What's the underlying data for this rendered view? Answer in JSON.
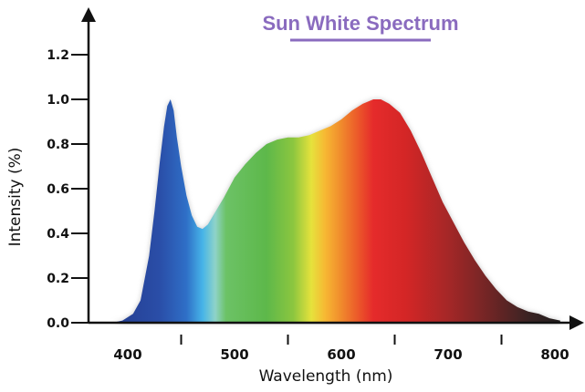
{
  "chart_data": {
    "type": "area",
    "title": "Sun White Spectrum",
    "xlabel": "Wavelength (nm)",
    "ylabel": "Intensity (%)",
    "xlim": [
      380,
      810
    ],
    "ylim": [
      0,
      1.3
    ],
    "x_ticks": [
      "400",
      "500",
      "600",
      "700",
      "800"
    ],
    "x_minor_ticks": [
      450,
      550,
      650,
      750
    ],
    "y_ticks": [
      "0.0",
      "0.2",
      "0.4",
      "0.6",
      "0.8",
      "1.0",
      "1.2"
    ],
    "grid": false,
    "fill": "spectral rainbow (wavelength-mapped colors)",
    "series": [
      {
        "x": [
          385,
          395,
          405,
          412,
          420,
          425,
          430,
          434,
          437,
          440,
          443,
          446,
          450,
          455,
          460,
          465,
          470,
          475,
          480,
          490,
          500,
          510,
          520,
          530,
          540,
          550,
          560,
          570,
          580,
          590,
          600,
          610,
          620,
          630,
          637,
          645,
          655,
          665,
          675,
          685,
          695,
          705,
          715,
          725,
          735,
          745,
          755,
          765,
          775,
          785,
          795,
          805
        ],
        "values": [
          0.0,
          0.01,
          0.04,
          0.1,
          0.3,
          0.5,
          0.72,
          0.88,
          0.97,
          1.0,
          0.95,
          0.83,
          0.7,
          0.57,
          0.48,
          0.43,
          0.42,
          0.44,
          0.48,
          0.56,
          0.65,
          0.71,
          0.76,
          0.8,
          0.82,
          0.83,
          0.83,
          0.84,
          0.86,
          0.88,
          0.91,
          0.95,
          0.98,
          1.0,
          1.0,
          0.98,
          0.94,
          0.86,
          0.76,
          0.65,
          0.54,
          0.45,
          0.36,
          0.28,
          0.21,
          0.15,
          0.1,
          0.07,
          0.05,
          0.04,
          0.02,
          0.01
        ]
      }
    ]
  }
}
